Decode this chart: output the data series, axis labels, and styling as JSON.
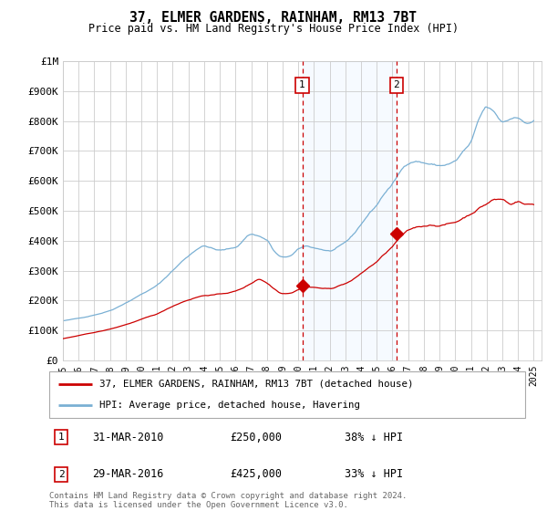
{
  "title": "37, ELMER GARDENS, RAINHAM, RM13 7BT",
  "subtitle": "Price paid vs. HM Land Registry's House Price Index (HPI)",
  "background_color": "#ffffff",
  "grid_color": "#cccccc",
  "hpi_color": "#7ab0d4",
  "price_color": "#cc0000",
  "marker_color": "#cc0000",
  "dashed_line_color": "#cc0000",
  "shaded_color": "#ddeeff",
  "ylim": [
    0,
    1000000
  ],
  "yticks": [
    0,
    100000,
    200000,
    300000,
    400000,
    500000,
    600000,
    700000,
    800000,
    900000,
    1000000
  ],
  "ytick_labels": [
    "£0",
    "£100K",
    "£200K",
    "£300K",
    "£400K",
    "£500K",
    "£600K",
    "£700K",
    "£800K",
    "£900K",
    "£1M"
  ],
  "sale1_year": 2010.25,
  "sale1_price": 250000,
  "sale1_label": "1",
  "sale1_date": "31-MAR-2010",
  "sale1_price_str": "£250,000",
  "sale1_pct": "38% ↓ HPI",
  "sale2_year": 2016.25,
  "sale2_price": 425000,
  "sale2_label": "2",
  "sale2_date": "29-MAR-2016",
  "sale2_price_str": "£425,000",
  "sale2_pct": "33% ↓ HPI",
  "legend_line1": "37, ELMER GARDENS, RAINHAM, RM13 7BT (detached house)",
  "legend_line2": "HPI: Average price, detached house, Havering",
  "footer": "Contains HM Land Registry data © Crown copyright and database right 2024.\nThis data is licensed under the Open Government Licence v3.0.",
  "xmin": 1995.0,
  "xmax": 2025.5
}
